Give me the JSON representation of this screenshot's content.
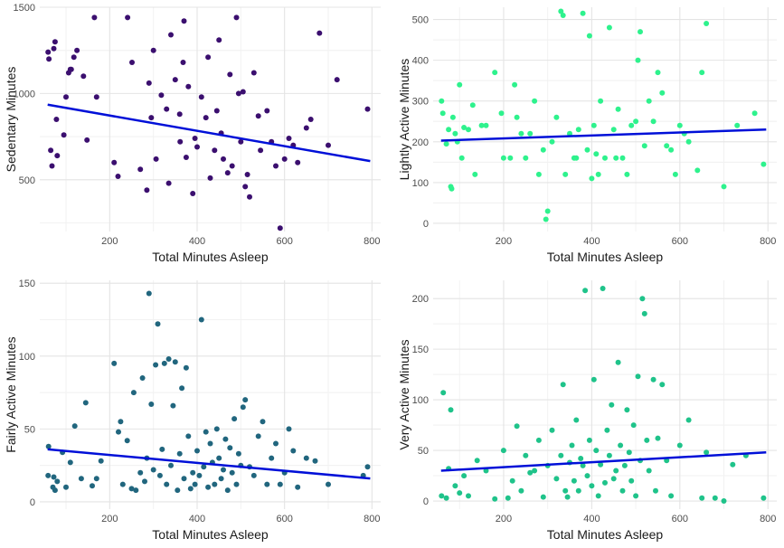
{
  "colors": {
    "background": "#ffffff",
    "grid_major": "#e4e4e4",
    "grid_minor": "#f2f2f2",
    "trend": "#0010d8"
  },
  "chart_data": [
    {
      "type": "scatter",
      "title": "",
      "xlabel": "Total Minutes Asleep",
      "ylabel": "Sedentary Minutes",
      "xlim": [
        40,
        820
      ],
      "ylim": [
        200,
        1500
      ],
      "xticks": [
        200,
        400,
        600,
        800
      ],
      "yticks": [
        500,
        1000,
        1500
      ],
      "point_color": "#3b0f6f",
      "trend_line": {
        "x": [
          58,
          796
        ],
        "y": [
          935,
          608
        ]
      },
      "points": {
        "x": [
          59,
          61,
          65,
          68,
          72,
          75,
          78,
          80,
          95,
          100,
          106,
          110,
          112,
          118,
          125,
          140,
          148,
          165,
          170,
          210,
          219,
          241,
          251,
          270,
          285,
          290,
          295,
          300,
          306,
          318,
          330,
          335,
          340,
          350,
          360,
          361,
          368,
          370,
          375,
          380,
          390,
          395,
          400,
          410,
          420,
          425,
          430,
          440,
          445,
          450,
          455,
          460,
          470,
          475,
          480,
          490,
          495,
          500,
          505,
          510,
          515,
          520,
          530,
          540,
          545,
          560,
          570,
          580,
          590,
          600,
          610,
          620,
          630,
          650,
          660,
          680,
          700,
          720,
          790
        ],
        "y": [
          1240,
          1200,
          670,
          580,
          1260,
          1300,
          850,
          640,
          760,
          980,
          1120,
          1140,
          1140,
          1210,
          1250,
          1100,
          730,
          1440,
          980,
          600,
          520,
          1440,
          1180,
          560,
          440,
          1060,
          860,
          1250,
          620,
          990,
          910,
          480,
          1340,
          1080,
          880,
          720,
          1180,
          1420,
          630,
          1040,
          420,
          740,
          690,
          980,
          860,
          1210,
          510,
          670,
          900,
          1310,
          770,
          620,
          540,
          1110,
          580,
          1440,
          1000,
          720,
          1010,
          460,
          530,
          400,
          1120,
          870,
          670,
          900,
          720,
          580,
          220,
          620,
          740,
          700,
          600,
          800,
          850,
          1350,
          700,
          1080,
          910
        ]
      }
    },
    {
      "type": "scatter",
      "title": "",
      "xlabel": "Total Minutes Asleep",
      "ylabel": "Lightly Active Minutes",
      "xlim": [
        40,
        820
      ],
      "ylim": [
        -20,
        530
      ],
      "xticks": [
        200,
        400,
        600,
        800
      ],
      "yticks": [
        0,
        100,
        200,
        300,
        400,
        500
      ],
      "point_color": "#2ef28d",
      "trend_line": {
        "x": [
          58,
          796
        ],
        "y": [
          203,
          230
        ]
      },
      "points": {
        "x": [
          59,
          62,
          70,
          75,
          80,
          82,
          85,
          90,
          95,
          100,
          105,
          110,
          120,
          130,
          135,
          150,
          160,
          180,
          195,
          200,
          215,
          225,
          230,
          240,
          250,
          260,
          270,
          280,
          290,
          296,
          300,
          310,
          320,
          330,
          335,
          340,
          350,
          360,
          365,
          370,
          380,
          390,
          395,
          400,
          405,
          410,
          415,
          420,
          430,
          440,
          450,
          455,
          460,
          470,
          480,
          490,
          500,
          505,
          510,
          520,
          530,
          540,
          550,
          560,
          570,
          580,
          590,
          600,
          610,
          620,
          640,
          650,
          660,
          700,
          730,
          770,
          790
        ],
        "y": [
          300,
          270,
          195,
          230,
          90,
          85,
          260,
          220,
          200,
          340,
          160,
          235,
          230,
          290,
          120,
          240,
          240,
          370,
          270,
          160,
          160,
          340,
          260,
          220,
          160,
          220,
          300,
          120,
          180,
          10,
          30,
          200,
          260,
          520,
          510,
          120,
          220,
          160,
          160,
          230,
          515,
          180,
          460,
          110,
          240,
          170,
          120,
          300,
          160,
          480,
          230,
          160,
          280,
          160,
          120,
          240,
          250,
          400,
          470,
          190,
          300,
          250,
          370,
          320,
          190,
          180,
          120,
          240,
          220,
          200,
          130,
          370,
          490,
          90,
          240,
          270,
          145
        ]
      }
    },
    {
      "type": "scatter",
      "title": "",
      "xlabel": "Total Minutes Asleep",
      "ylabel": "Fairly Active Minutes",
      "xlim": [
        40,
        820
      ],
      "ylim": [
        -5,
        152
      ],
      "xticks": [
        200,
        400,
        600,
        800
      ],
      "yticks": [
        0,
        50,
        100,
        150
      ],
      "point_color": "#21667e",
      "trend_line": {
        "x": [
          58,
          796
        ],
        "y": [
          36,
          16
        ]
      },
      "points": {
        "x": [
          59,
          60,
          70,
          72,
          75,
          80,
          92,
          100,
          110,
          120,
          135,
          145,
          160,
          170,
          180,
          210,
          220,
          225,
          230,
          240,
          250,
          255,
          260,
          270,
          275,
          280,
          285,
          290,
          295,
          300,
          305,
          310,
          315,
          320,
          325,
          330,
          335,
          340,
          345,
          350,
          355,
          360,
          365,
          370,
          375,
          380,
          385,
          390,
          395,
          400,
          405,
          410,
          415,
          420,
          425,
          430,
          435,
          440,
          445,
          450,
          455,
          460,
          465,
          470,
          475,
          480,
          485,
          490,
          495,
          500,
          505,
          510,
          520,
          530,
          540,
          550,
          560,
          570,
          580,
          590,
          600,
          610,
          620,
          630,
          650,
          670,
          700,
          780,
          790
        ],
        "y": [
          18,
          38,
          10,
          17,
          8,
          14,
          34,
          10,
          27,
          52,
          16,
          68,
          11,
          16,
          28,
          95,
          48,
          55,
          12,
          42,
          9,
          75,
          8,
          20,
          85,
          14,
          30,
          143,
          67,
          22,
          94,
          122,
          18,
          36,
          95,
          12,
          98,
          25,
          66,
          96,
          8,
          33,
          78,
          16,
          92,
          45,
          9,
          20,
          12,
          35,
          18,
          125,
          24,
          48,
          10,
          40,
          27,
          12,
          50,
          30,
          16,
          22,
          43,
          8,
          37,
          20,
          57,
          12,
          33,
          25,
          65,
          70,
          24,
          18,
          45,
          55,
          12,
          30,
          40,
          12,
          20,
          50,
          35,
          10,
          30,
          28,
          12,
          18,
          24
        ]
      }
    },
    {
      "type": "scatter",
      "title": "",
      "xlabel": "Total Minutes Asleep",
      "ylabel": "Very Active Minutes",
      "xlim": [
        40,
        820
      ],
      "ylim": [
        -8,
        218
      ],
      "xticks": [
        200,
        400,
        600,
        800
      ],
      "yticks": [
        0,
        50,
        100,
        150,
        200
      ],
      "point_color": "#1fc38a",
      "trend_line": {
        "x": [
          58,
          796
        ],
        "y": [
          30,
          48
        ]
      },
      "points": {
        "x": [
          59,
          63,
          70,
          75,
          80,
          90,
          100,
          110,
          120,
          140,
          160,
          180,
          200,
          210,
          220,
          230,
          240,
          250,
          260,
          270,
          280,
          290,
          300,
          310,
          320,
          330,
          335,
          340,
          345,
          350,
          355,
          360,
          365,
          370,
          375,
          380,
          385,
          390,
          395,
          400,
          405,
          410,
          415,
          420,
          425,
          430,
          435,
          440,
          445,
          450,
          455,
          460,
          465,
          470,
          475,
          480,
          485,
          490,
          495,
          500,
          505,
          510,
          515,
          520,
          525,
          530,
          540,
          545,
          550,
          560,
          570,
          580,
          600,
          620,
          650,
          660,
          680,
          700,
          720,
          750,
          790
        ],
        "y": [
          5,
          107,
          3,
          32,
          90,
          15,
          8,
          25,
          5,
          40,
          30,
          2,
          50,
          3,
          20,
          74,
          10,
          45,
          28,
          30,
          60,
          4,
          35,
          70,
          22,
          45,
          115,
          10,
          4,
          38,
          55,
          20,
          80,
          10,
          42,
          35,
          208,
          25,
          60,
          15,
          120,
          50,
          5,
          36,
          210,
          18,
          70,
          45,
          95,
          22,
          30,
          137,
          55,
          10,
          35,
          90,
          48,
          20,
          75,
          5,
          123,
          40,
          200,
          185,
          60,
          30,
          120,
          10,
          62,
          115,
          40,
          5,
          55,
          80,
          3,
          48,
          3,
          0,
          36,
          45,
          3
        ]
      }
    }
  ]
}
